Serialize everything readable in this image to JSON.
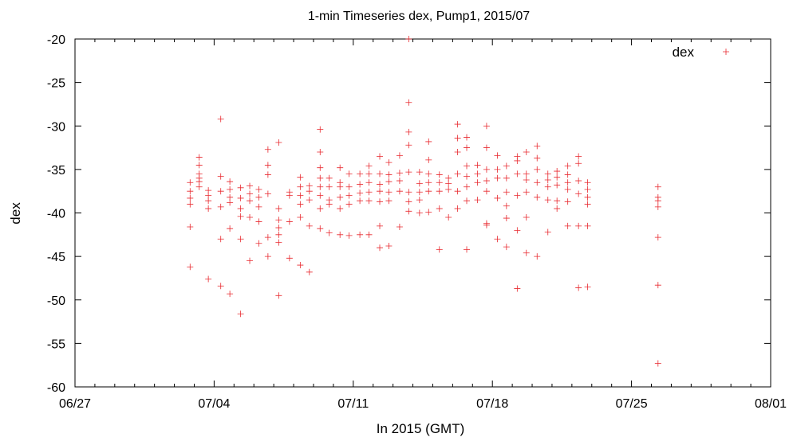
{
  "chart_data": {
    "type": "scatter",
    "title": "1-min Timeseries dex, Pump1, 2015/07",
    "xlabel": "In 2015 (GMT)",
    "ylabel": "dex",
    "xlim": [
      "2015-06-27",
      "2015-08-01"
    ],
    "ylim": [
      -60,
      -20
    ],
    "xticks": [
      {
        "date": "2015-06-27",
        "label": "06/27"
      },
      {
        "date": "2015-07-04",
        "label": "07/04"
      },
      {
        "date": "2015-07-11",
        "label": "07/11"
      },
      {
        "date": "2015-07-18",
        "label": "07/18"
      },
      {
        "date": "2015-07-25",
        "label": "07/25"
      },
      {
        "date": "2015-08-01",
        "label": "08/01"
      }
    ],
    "yticks": [
      -60,
      -55,
      -50,
      -45,
      -40,
      -35,
      -30,
      -25,
      -20
    ],
    "yticks_labels": [
      "-60",
      "-55",
      "-50",
      "-45",
      "-40",
      "-35",
      "-30",
      "-25",
      "-20"
    ],
    "grid": false,
    "legend": {
      "position": "top-right",
      "entries": [
        "dex"
      ]
    },
    "marker_color": "#e8292f",
    "series": [
      {
        "name": "dex",
        "marker": "plus",
        "points": [
          [
            "2015-07-02T19:00",
            -36.5
          ],
          [
            "2015-07-02T19:00",
            -37.5
          ],
          [
            "2015-07-02T19:00",
            -38.3
          ],
          [
            "2015-07-02T19:00",
            -39.0
          ],
          [
            "2015-07-02T19:00",
            -41.6
          ],
          [
            "2015-07-02T19:00",
            -46.2
          ],
          [
            "2015-07-03T06:00",
            -33.6
          ],
          [
            "2015-07-03T06:00",
            -34.5
          ],
          [
            "2015-07-03T06:00",
            -35.5
          ],
          [
            "2015-07-03T06:00",
            -36.0
          ],
          [
            "2015-07-03T06:00",
            -36.4
          ],
          [
            "2015-07-03T06:00",
            -37.0
          ],
          [
            "2015-07-03T17:00",
            -37.4
          ],
          [
            "2015-07-03T17:00",
            -38.0
          ],
          [
            "2015-07-03T17:00",
            -38.6
          ],
          [
            "2015-07-03T17:00",
            -39.5
          ],
          [
            "2015-07-03T17:00",
            -47.6
          ],
          [
            "2015-07-04T08:00",
            -29.2
          ],
          [
            "2015-07-04T08:00",
            -35.8
          ],
          [
            "2015-07-04T08:00",
            -37.5
          ],
          [
            "2015-07-04T08:00",
            -39.3
          ],
          [
            "2015-07-04T08:00",
            -43.0
          ],
          [
            "2015-07-04T08:00",
            -48.4
          ],
          [
            "2015-07-04T19:00",
            -36.4
          ],
          [
            "2015-07-04T19:00",
            -37.3
          ],
          [
            "2015-07-04T19:00",
            -38.2
          ],
          [
            "2015-07-04T19:00",
            -38.8
          ],
          [
            "2015-07-04T19:00",
            -41.8
          ],
          [
            "2015-07-04T19:00",
            -49.3
          ],
          [
            "2015-07-05T08:00",
            -37.1
          ],
          [
            "2015-07-05T08:00",
            -38.3
          ],
          [
            "2015-07-05T08:00",
            -39.5
          ],
          [
            "2015-07-05T08:00",
            -40.4
          ],
          [
            "2015-07-05T08:00",
            -43.0
          ],
          [
            "2015-07-05T08:00",
            -51.6
          ],
          [
            "2015-07-05T19:00",
            -36.9
          ],
          [
            "2015-07-05T19:00",
            -37.8
          ],
          [
            "2015-07-05T19:00",
            -38.6
          ],
          [
            "2015-07-05T19:00",
            -40.5
          ],
          [
            "2015-07-05T19:00",
            -45.5
          ],
          [
            "2015-07-06T06:00",
            -37.3
          ],
          [
            "2015-07-06T06:00",
            -38.2
          ],
          [
            "2015-07-06T06:00",
            -39.3
          ],
          [
            "2015-07-06T06:00",
            -41.0
          ],
          [
            "2015-07-06T06:00",
            -43.5
          ],
          [
            "2015-07-06T17:00",
            -32.7
          ],
          [
            "2015-07-06T17:00",
            -34.5
          ],
          [
            "2015-07-06T17:00",
            -35.6
          ],
          [
            "2015-07-06T17:00",
            -37.8
          ],
          [
            "2015-07-06T17:00",
            -42.8
          ],
          [
            "2015-07-06T17:00",
            -45.0
          ],
          [
            "2015-07-07T06:00",
            -31.9
          ],
          [
            "2015-07-07T06:00",
            -39.5
          ],
          [
            "2015-07-07T06:00",
            -40.8
          ],
          [
            "2015-07-07T06:00",
            -41.7
          ],
          [
            "2015-07-07T06:00",
            -42.5
          ],
          [
            "2015-07-07T06:00",
            -43.4
          ],
          [
            "2015-07-07T06:00",
            -49.5
          ],
          [
            "2015-07-07T19:00",
            -37.6
          ],
          [
            "2015-07-07T19:00",
            -38.0
          ],
          [
            "2015-07-07T19:00",
            -41.0
          ],
          [
            "2015-07-07T19:00",
            -45.2
          ],
          [
            "2015-07-08T08:00",
            -35.9
          ],
          [
            "2015-07-08T08:00",
            -37.0
          ],
          [
            "2015-07-08T08:00",
            -38.0
          ],
          [
            "2015-07-08T08:00",
            -39.0
          ],
          [
            "2015-07-08T08:00",
            -40.5
          ],
          [
            "2015-07-08T08:00",
            -46.0
          ],
          [
            "2015-07-08T19:00",
            -36.9
          ],
          [
            "2015-07-08T19:00",
            -37.5
          ],
          [
            "2015-07-08T19:00",
            -38.5
          ],
          [
            "2015-07-08T19:00",
            -41.5
          ],
          [
            "2015-07-08T19:00",
            -46.8
          ],
          [
            "2015-07-09T08:00",
            -30.4
          ],
          [
            "2015-07-09T08:00",
            -33.0
          ],
          [
            "2015-07-09T08:00",
            -34.8
          ],
          [
            "2015-07-09T08:00",
            -36.0
          ],
          [
            "2015-07-09T08:00",
            -37.0
          ],
          [
            "2015-07-09T08:00",
            -38.0
          ],
          [
            "2015-07-09T08:00",
            -39.5
          ],
          [
            "2015-07-09T08:00",
            -41.8
          ],
          [
            "2015-07-09T19:00",
            -36.0
          ],
          [
            "2015-07-09T19:00",
            -37.0
          ],
          [
            "2015-07-09T19:00",
            -38.5
          ],
          [
            "2015-07-09T19:00",
            -39.0
          ],
          [
            "2015-07-09T19:00",
            -42.3
          ],
          [
            "2015-07-10T08:00",
            -34.8
          ],
          [
            "2015-07-10T08:00",
            -36.5
          ],
          [
            "2015-07-10T08:00",
            -37.0
          ],
          [
            "2015-07-10T08:00",
            -38.2
          ],
          [
            "2015-07-10T08:00",
            -39.5
          ],
          [
            "2015-07-10T08:00",
            -42.5
          ],
          [
            "2015-07-10T19:00",
            -35.5
          ],
          [
            "2015-07-10T19:00",
            -37.0
          ],
          [
            "2015-07-10T19:00",
            -38.0
          ],
          [
            "2015-07-10T19:00",
            -39.0
          ],
          [
            "2015-07-10T19:00",
            -42.6
          ],
          [
            "2015-07-11T08:00",
            -35.5
          ],
          [
            "2015-07-11T08:00",
            -36.7
          ],
          [
            "2015-07-11T08:00",
            -37.7
          ],
          [
            "2015-07-11T08:00",
            -38.6
          ],
          [
            "2015-07-11T08:00",
            -42.5
          ],
          [
            "2015-07-11T19:00",
            -34.6
          ],
          [
            "2015-07-11T19:00",
            -35.5
          ],
          [
            "2015-07-11T19:00",
            -36.5
          ],
          [
            "2015-07-11T19:00",
            -37.6
          ],
          [
            "2015-07-11T19:00",
            -38.6
          ],
          [
            "2015-07-11T19:00",
            -42.5
          ],
          [
            "2015-07-12T08:00",
            -33.5
          ],
          [
            "2015-07-12T08:00",
            -35.5
          ],
          [
            "2015-07-12T08:00",
            -36.7
          ],
          [
            "2015-07-12T08:00",
            -37.5
          ],
          [
            "2015-07-12T08:00",
            -38.7
          ],
          [
            "2015-07-12T08:00",
            -41.5
          ],
          [
            "2015-07-12T08:00",
            -44.0
          ],
          [
            "2015-07-12T19:00",
            -34.2
          ],
          [
            "2015-07-12T19:00",
            -35.6
          ],
          [
            "2015-07-12T19:00",
            -36.4
          ],
          [
            "2015-07-12T19:00",
            -37.6
          ],
          [
            "2015-07-12T19:00",
            -38.6
          ],
          [
            "2015-07-12T19:00",
            -43.8
          ],
          [
            "2015-07-13T08:00",
            -33.4
          ],
          [
            "2015-07-13T08:00",
            -35.4
          ],
          [
            "2015-07-13T08:00",
            -36.3
          ],
          [
            "2015-07-13T08:00",
            -37.5
          ],
          [
            "2015-07-13T08:00",
            -41.6
          ],
          [
            "2015-07-13T19:00",
            -20.0
          ],
          [
            "2015-07-13T19:00",
            -27.3
          ],
          [
            "2015-07-13T19:00",
            -30.7
          ],
          [
            "2015-07-13T19:00",
            -32.2
          ],
          [
            "2015-07-13T19:00",
            -35.3
          ],
          [
            "2015-07-13T19:00",
            -37.6
          ],
          [
            "2015-07-13T19:00",
            -38.7
          ],
          [
            "2015-07-13T19:00",
            -39.8
          ],
          [
            "2015-07-14T08:00",
            -35.3
          ],
          [
            "2015-07-14T08:00",
            -36.6
          ],
          [
            "2015-07-14T08:00",
            -37.6
          ],
          [
            "2015-07-14T08:00",
            -38.5
          ],
          [
            "2015-07-14T08:00",
            -40.0
          ],
          [
            "2015-07-14T19:00",
            -31.8
          ],
          [
            "2015-07-14T19:00",
            -33.9
          ],
          [
            "2015-07-14T19:00",
            -35.5
          ],
          [
            "2015-07-14T19:00",
            -36.5
          ],
          [
            "2015-07-14T19:00",
            -37.5
          ],
          [
            "2015-07-14T19:00",
            -39.9
          ],
          [
            "2015-07-15T08:00",
            -35.6
          ],
          [
            "2015-07-15T08:00",
            -36.5
          ],
          [
            "2015-07-15T08:00",
            -37.5
          ],
          [
            "2015-07-15T08:00",
            -39.5
          ],
          [
            "2015-07-15T08:00",
            -44.2
          ],
          [
            "2015-07-15T19:00",
            -36.0
          ],
          [
            "2015-07-15T19:00",
            -36.6
          ],
          [
            "2015-07-15T19:00",
            -37.3
          ],
          [
            "2015-07-15T19:00",
            -40.5
          ],
          [
            "2015-07-16T06:00",
            -29.8
          ],
          [
            "2015-07-16T06:00",
            -31.4
          ],
          [
            "2015-07-16T06:00",
            -33.0
          ],
          [
            "2015-07-16T06:00",
            -35.5
          ],
          [
            "2015-07-16T06:00",
            -37.5
          ],
          [
            "2015-07-16T06:00",
            -39.5
          ],
          [
            "2015-07-16T17:00",
            -31.3
          ],
          [
            "2015-07-16T17:00",
            -32.5
          ],
          [
            "2015-07-16T17:00",
            -34.6
          ],
          [
            "2015-07-16T17:00",
            -35.8
          ],
          [
            "2015-07-16T17:00",
            -37.0
          ],
          [
            "2015-07-16T17:00",
            -38.6
          ],
          [
            "2015-07-16T17:00",
            -44.2
          ],
          [
            "2015-07-17T06:00",
            -34.5
          ],
          [
            "2015-07-17T06:00",
            -35.5
          ],
          [
            "2015-07-17T06:00",
            -36.5
          ],
          [
            "2015-07-17T06:00",
            -38.5
          ],
          [
            "2015-07-17T17:00",
            -30.0
          ],
          [
            "2015-07-17T17:00",
            -32.5
          ],
          [
            "2015-07-17T17:00",
            -35.0
          ],
          [
            "2015-07-17T17:00",
            -36.3
          ],
          [
            "2015-07-17T17:00",
            -37.5
          ],
          [
            "2015-07-17T17:00",
            -41.2
          ],
          [
            "2015-07-17T17:00",
            -41.4
          ],
          [
            "2015-07-18T06:00",
            -33.4
          ],
          [
            "2015-07-18T06:00",
            -35.0
          ],
          [
            "2015-07-18T06:00",
            -36.0
          ],
          [
            "2015-07-18T06:00",
            -38.3
          ],
          [
            "2015-07-18T06:00",
            -43.0
          ],
          [
            "2015-07-18T17:00",
            -34.6
          ],
          [
            "2015-07-18T17:00",
            -36.0
          ],
          [
            "2015-07-18T17:00",
            -37.6
          ],
          [
            "2015-07-18T17:00",
            -39.2
          ],
          [
            "2015-07-18T17:00",
            -40.6
          ],
          [
            "2015-07-18T17:00",
            -43.9
          ],
          [
            "2015-07-19T06:00",
            -33.5
          ],
          [
            "2015-07-19T06:00",
            -34.0
          ],
          [
            "2015-07-19T06:00",
            -35.5
          ],
          [
            "2015-07-19T06:00",
            -38.0
          ],
          [
            "2015-07-19T06:00",
            -42.0
          ],
          [
            "2015-07-19T06:00",
            -48.7
          ],
          [
            "2015-07-19T17:00",
            -33.0
          ],
          [
            "2015-07-19T17:00",
            -35.5
          ],
          [
            "2015-07-19T17:00",
            -36.2
          ],
          [
            "2015-07-19T17:00",
            -37.6
          ],
          [
            "2015-07-19T17:00",
            -40.5
          ],
          [
            "2015-07-19T17:00",
            -44.6
          ],
          [
            "2015-07-20T06:00",
            -32.3
          ],
          [
            "2015-07-20T06:00",
            -33.7
          ],
          [
            "2015-07-20T06:00",
            -35.0
          ],
          [
            "2015-07-20T06:00",
            -36.5
          ],
          [
            "2015-07-20T06:00",
            -38.2
          ],
          [
            "2015-07-20T06:00",
            -45.0
          ],
          [
            "2015-07-20T19:00",
            -35.5
          ],
          [
            "2015-07-20T19:00",
            -36.2
          ],
          [
            "2015-07-20T19:00",
            -37.0
          ],
          [
            "2015-07-20T19:00",
            -38.5
          ],
          [
            "2015-07-20T19:00",
            -42.2
          ],
          [
            "2015-07-21T06:00",
            -35.2
          ],
          [
            "2015-07-21T06:00",
            -35.9
          ],
          [
            "2015-07-21T06:00",
            -36.8
          ],
          [
            "2015-07-21T06:00",
            -38.6
          ],
          [
            "2015-07-21T06:00",
            -39.5
          ],
          [
            "2015-07-21T19:00",
            -34.6
          ],
          [
            "2015-07-21T19:00",
            -35.6
          ],
          [
            "2015-07-21T19:00",
            -36.5
          ],
          [
            "2015-07-21T19:00",
            -37.3
          ],
          [
            "2015-07-21T19:00",
            -38.7
          ],
          [
            "2015-07-21T19:00",
            -41.5
          ],
          [
            "2015-07-22T08:00",
            -33.5
          ],
          [
            "2015-07-22T08:00",
            -34.3
          ],
          [
            "2015-07-22T08:00",
            -36.3
          ],
          [
            "2015-07-22T08:00",
            -37.8
          ],
          [
            "2015-07-22T08:00",
            -41.5
          ],
          [
            "2015-07-22T08:00",
            -48.6
          ],
          [
            "2015-07-22T19:00",
            -36.5
          ],
          [
            "2015-07-22T19:00",
            -37.3
          ],
          [
            "2015-07-22T19:00",
            -38.2
          ],
          [
            "2015-07-22T19:00",
            -39.0
          ],
          [
            "2015-07-22T19:00",
            -41.5
          ],
          [
            "2015-07-22T19:00",
            -48.5
          ],
          [
            "2015-07-26T08:00",
            -37.0
          ],
          [
            "2015-07-26T08:00",
            -38.2
          ],
          [
            "2015-07-26T08:00",
            -38.6
          ],
          [
            "2015-07-26T08:00",
            -39.3
          ],
          [
            "2015-07-26T08:00",
            -42.8
          ],
          [
            "2015-07-26T08:00",
            -48.3
          ],
          [
            "2015-07-26T08:00",
            -57.3
          ]
        ]
      }
    ]
  }
}
